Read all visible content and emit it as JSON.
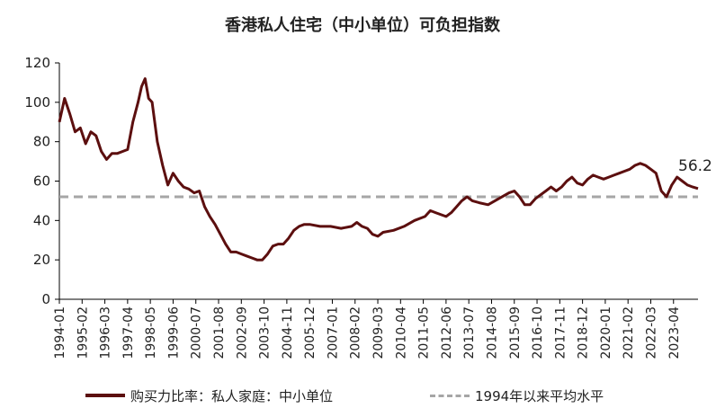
{
  "chart_data": {
    "type": "line",
    "title": "香港私人住宅（中小单位）可负担指数",
    "ylim": [
      0,
      120
    ],
    "yticks": [
      0,
      20,
      40,
      60,
      80,
      100,
      120
    ],
    "xtick_labels": [
      "1994-01",
      "1995-02",
      "1996-03",
      "1997-04",
      "1998-05",
      "1999-06",
      "2000-07",
      "2001-08",
      "2002-09",
      "2003-10",
      "2004-11",
      "2005-12",
      "2007-01",
      "2008-02",
      "2009-03",
      "2010-04",
      "2011-05",
      "2012-06",
      "2013-07",
      "2014-08",
      "2015-09",
      "2016-10",
      "2017-11",
      "2018-12",
      "2020-01",
      "2021-02",
      "2022-03",
      "2023-04"
    ],
    "x_start": "1994-01",
    "x_end": "2024-06",
    "series": [
      {
        "name": "购买力比率：私人家庭：中小单位",
        "color": "#5c0f0f",
        "points": [
          [
            "1994-01",
            90
          ],
          [
            "1994-04",
            102
          ],
          [
            "1994-07",
            94
          ],
          [
            "1994-10",
            85
          ],
          [
            "1995-01",
            87
          ],
          [
            "1995-04",
            79
          ],
          [
            "1995-07",
            85
          ],
          [
            "1995-10",
            83
          ],
          [
            "1996-01",
            75
          ],
          [
            "1996-04",
            71
          ],
          [
            "1996-07",
            74
          ],
          [
            "1996-10",
            74
          ],
          [
            "1997-01",
            75
          ],
          [
            "1997-04",
            76
          ],
          [
            "1997-07",
            90
          ],
          [
            "1997-10",
            100
          ],
          [
            "1997-12",
            108
          ],
          [
            "1998-02",
            112
          ],
          [
            "1998-04",
            102
          ],
          [
            "1998-06",
            100
          ],
          [
            "1998-09",
            80
          ],
          [
            "1998-12",
            68
          ],
          [
            "1999-03",
            58
          ],
          [
            "1999-06",
            64
          ],
          [
            "1999-09",
            60
          ],
          [
            "1999-12",
            57
          ],
          [
            "2000-03",
            56
          ],
          [
            "2000-06",
            54
          ],
          [
            "2000-09",
            55
          ],
          [
            "2000-12",
            47
          ],
          [
            "2001-03",
            42
          ],
          [
            "2001-06",
            38
          ],
          [
            "2001-09",
            33
          ],
          [
            "2001-12",
            28
          ],
          [
            "2002-03",
            24
          ],
          [
            "2002-06",
            24
          ],
          [
            "2002-09",
            23
          ],
          [
            "2002-12",
            22
          ],
          [
            "2003-03",
            21
          ],
          [
            "2003-06",
            20
          ],
          [
            "2003-09",
            20
          ],
          [
            "2003-12",
            23
          ],
          [
            "2004-03",
            27
          ],
          [
            "2004-06",
            28
          ],
          [
            "2004-09",
            28
          ],
          [
            "2004-12",
            31
          ],
          [
            "2005-03",
            35
          ],
          [
            "2005-06",
            37
          ],
          [
            "2005-09",
            38
          ],
          [
            "2005-12",
            38
          ],
          [
            "2006-06",
            37
          ],
          [
            "2006-12",
            37
          ],
          [
            "2007-06",
            36
          ],
          [
            "2007-12",
            37
          ],
          [
            "2008-03",
            39
          ],
          [
            "2008-06",
            37
          ],
          [
            "2008-09",
            36
          ],
          [
            "2008-12",
            33
          ],
          [
            "2009-03",
            32
          ],
          [
            "2009-06",
            34
          ],
          [
            "2009-12",
            35
          ],
          [
            "2010-06",
            37
          ],
          [
            "2010-12",
            40
          ],
          [
            "2011-06",
            42
          ],
          [
            "2011-09",
            45
          ],
          [
            "2011-12",
            44
          ],
          [
            "2012-06",
            42
          ],
          [
            "2012-09",
            44
          ],
          [
            "2012-12",
            47
          ],
          [
            "2013-03",
            50
          ],
          [
            "2013-06",
            52
          ],
          [
            "2013-09",
            50
          ],
          [
            "2014-01",
            49
          ],
          [
            "2014-06",
            48
          ],
          [
            "2014-12",
            51
          ],
          [
            "2015-06",
            54
          ],
          [
            "2015-09",
            55
          ],
          [
            "2015-12",
            52
          ],
          [
            "2016-03",
            48
          ],
          [
            "2016-06",
            48
          ],
          [
            "2016-09",
            51
          ],
          [
            "2016-12",
            53
          ],
          [
            "2017-03",
            55
          ],
          [
            "2017-06",
            57
          ],
          [
            "2017-09",
            55
          ],
          [
            "2017-12",
            57
          ],
          [
            "2018-03",
            60
          ],
          [
            "2018-06",
            62
          ],
          [
            "2018-09",
            59
          ],
          [
            "2018-12",
            58
          ],
          [
            "2019-03",
            61
          ],
          [
            "2019-06",
            63
          ],
          [
            "2019-09",
            62
          ],
          [
            "2019-12",
            61
          ],
          [
            "2020-03",
            62
          ],
          [
            "2020-06",
            63
          ],
          [
            "2020-09",
            64
          ],
          [
            "2020-12",
            65
          ],
          [
            "2021-03",
            66
          ],
          [
            "2021-06",
            68
          ],
          [
            "2021-09",
            69
          ],
          [
            "2021-12",
            68
          ],
          [
            "2022-03",
            66
          ],
          [
            "2022-06",
            64
          ],
          [
            "2022-09",
            55
          ],
          [
            "2022-12",
            52
          ],
          [
            "2023-03",
            58
          ],
          [
            "2023-06",
            62
          ],
          [
            "2023-09",
            60
          ],
          [
            "2023-12",
            58
          ],
          [
            "2024-03",
            57
          ],
          [
            "2024-06",
            56.2
          ]
        ]
      },
      {
        "name": "1994年以来平均水平",
        "color": "#a6a6a6",
        "style": "dashed",
        "value": 52
      }
    ],
    "annotation": {
      "text": "56.2",
      "at": "2024-06",
      "value": 56.2
    }
  }
}
